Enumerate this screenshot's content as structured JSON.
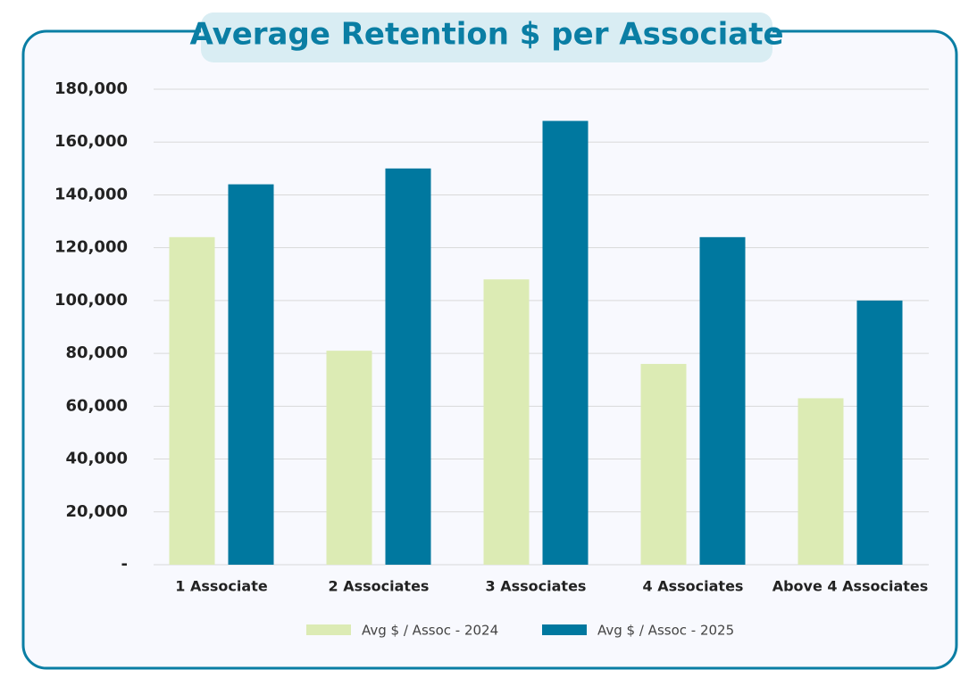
{
  "chart_data": {
    "type": "bar",
    "title": "Average Retention $ per Associate",
    "categories": [
      "1 Associate",
      "2 Associates",
      "3 Associates",
      "4 Associates",
      "Above 4 Associates"
    ],
    "series": [
      {
        "name": "Avg $ / Assoc - 2024",
        "color": "#dcebb4",
        "values": [
          124000,
          81000,
          108000,
          76000,
          63000
        ]
      },
      {
        "name": "Avg $ / Assoc - 2025",
        "color": "#00789f",
        "values": [
          144000,
          150000,
          168000,
          124000,
          100000
        ]
      }
    ],
    "ylim": [
      0,
      180000
    ],
    "yticks": [
      {
        "value": 0,
        "label": "-"
      },
      {
        "value": 20000,
        "label": "20,000"
      },
      {
        "value": 40000,
        "label": "40,000"
      },
      {
        "value": 60000,
        "label": "60,000"
      },
      {
        "value": 80000,
        "label": "80,000"
      },
      {
        "value": 100000,
        "label": "100,000"
      },
      {
        "value": 120000,
        "label": "120,000"
      },
      {
        "value": 140000,
        "label": "140,000"
      },
      {
        "value": 160000,
        "label": "160,000"
      },
      {
        "value": 180000,
        "label": "180,000"
      }
    ],
    "grid": true,
    "legend": "bottom"
  }
}
